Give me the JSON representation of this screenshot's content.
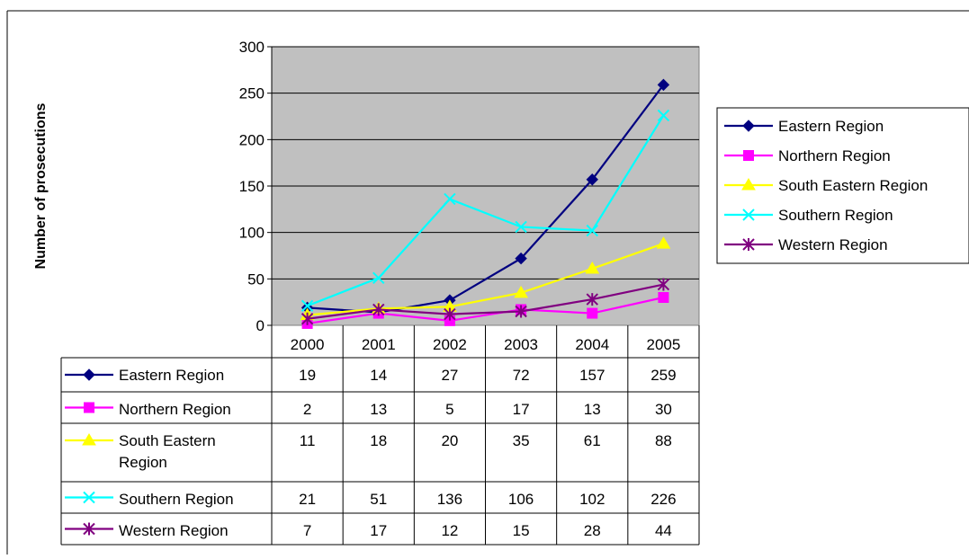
{
  "chart_data": {
    "type": "line",
    "title": "",
    "xlabel": "",
    "ylabel": "Number of prosecutions",
    "ylim": [
      0,
      300
    ],
    "yticks": [
      0,
      50,
      100,
      150,
      200,
      250,
      300
    ],
    "grid": true,
    "legend_position": "right",
    "plot_background": "#C0C0C0",
    "categories": [
      "2000",
      "2001",
      "2002",
      "2003",
      "2004",
      "2005"
    ],
    "series": [
      {
        "name": "Eastern Region",
        "values": [
          19,
          14,
          27,
          72,
          157,
          259
        ],
        "color": "#000080",
        "marker": "diamond"
      },
      {
        "name": "Northern Region",
        "values": [
          2,
          13,
          5,
          17,
          13,
          30
        ],
        "color": "#FF00FF",
        "marker": "square"
      },
      {
        "name": "South Eastern Region",
        "values": [
          11,
          18,
          20,
          35,
          61,
          88
        ],
        "color": "#FFFF00",
        "marker": "triangle"
      },
      {
        "name": "Southern Region",
        "values": [
          21,
          51,
          136,
          106,
          102,
          226
        ],
        "color": "#00FFFF",
        "marker": "x"
      },
      {
        "name": "Western Region",
        "values": [
          7,
          17,
          12,
          15,
          28,
          44
        ],
        "color": "#800080",
        "marker": "asterisk"
      }
    ],
    "table": {
      "row_labels": [
        [
          "Eastern Region"
        ],
        [
          "Northern Region"
        ],
        [
          "South Eastern",
          "Region"
        ],
        [
          "Southern Region"
        ],
        [
          "Western Region"
        ]
      ]
    }
  }
}
